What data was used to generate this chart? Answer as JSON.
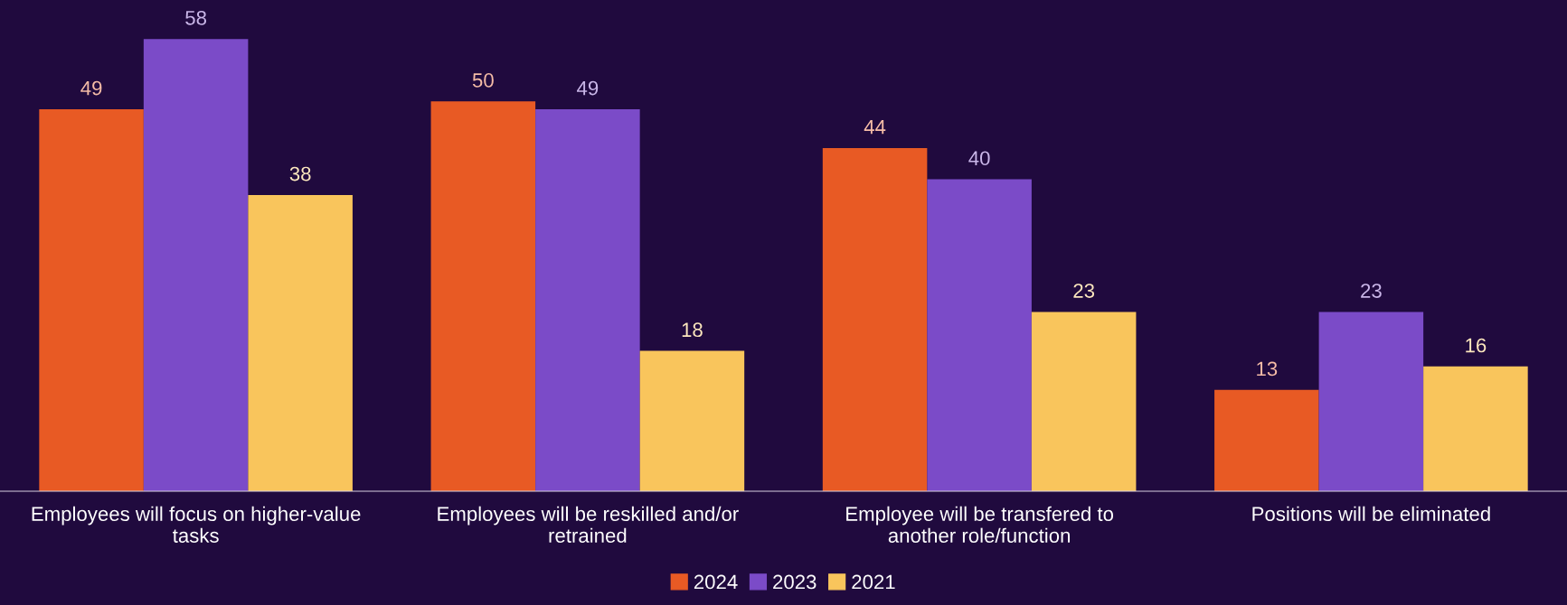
{
  "chart_data": {
    "type": "bar",
    "categories": [
      "Employees will focus on higher-value\ntasks",
      "Employees will be reskilled and/or\nretrained",
      "Employee will be transfered to\nanother role/function",
      "Positions will be eliminated"
    ],
    "series": [
      {
        "name": "2024",
        "color": "#e85a24",
        "values": [
          49,
          50,
          44,
          13
        ]
      },
      {
        "name": "2023",
        "color": "#7b4bc8",
        "values": [
          58,
          49,
          40,
          23
        ]
      },
      {
        "name": "2021",
        "color": "#f9c55c",
        "values": [
          38,
          18,
          23,
          16
        ]
      }
    ],
    "ylim": [
      0,
      63
    ],
    "data_labels": true,
    "legend": "bottom",
    "grid": false
  }
}
